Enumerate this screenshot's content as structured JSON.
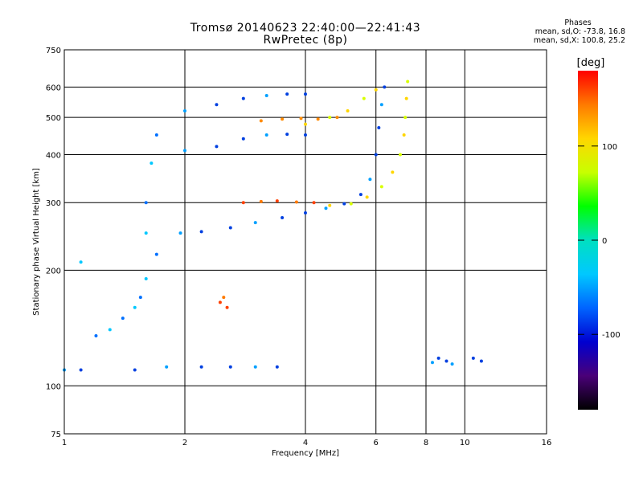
{
  "title": "Tromsø 20140623 22:40:00—22:41:43",
  "subtitle": "RwPretec (8p)",
  "stats": {
    "heading": "Phases",
    "line_o": "mean, sd,O: -73.8, 16.8",
    "line_x": "mean, sd,X: 100.8, 25.2"
  },
  "colorbar": {
    "label": "[deg]",
    "ticks": [
      "100",
      "0",
      "-100"
    ],
    "colors": [
      "#ff0000",
      "#ff7a00",
      "#ffd600",
      "#c8ff00",
      "#00ff00",
      "#00e0c0",
      "#00c8ff",
      "#0064ff",
      "#0000d0",
      "#4a0078",
      "#000000"
    ]
  },
  "chart_data": {
    "type": "scatter",
    "xlabel": "Frequency [MHz]",
    "ylabel": "Stationary phase Virtual Height [km]",
    "xscale": "log",
    "yscale": "log",
    "xlim": [
      1,
      16
    ],
    "ylim": [
      75,
      750
    ],
    "xticks": [
      1,
      2,
      4,
      6,
      8,
      10,
      16
    ],
    "yticks": [
      75,
      100,
      200,
      300,
      400,
      500,
      600,
      750
    ],
    "series": [
      {
        "points": [
          [
            1.95,
            250
          ],
          [
            2.2,
            252
          ],
          [
            2.6,
            258
          ],
          [
            3.0,
            266
          ],
          [
            3.5,
            274
          ],
          [
            4.0,
            282
          ],
          [
            4.5,
            290
          ],
          [
            5.0,
            298
          ],
          [
            5.5,
            315
          ],
          [
            5.8,
            345
          ],
          [
            6.0,
            400
          ],
          [
            6.1,
            470
          ],
          [
            6.2,
            540
          ],
          [
            6.3,
            600
          ]
        ]
      },
      {
        "points": [
          [
            2.8,
            300
          ],
          [
            3.1,
            302
          ],
          [
            3.4,
            303
          ],
          [
            3.8,
            301
          ],
          [
            4.2,
            300
          ]
        ]
      },
      {
        "points": [
          [
            4.6,
            295
          ],
          [
            5.2,
            298
          ],
          [
            5.7,
            310
          ],
          [
            6.2,
            330
          ],
          [
            6.6,
            360
          ],
          [
            6.9,
            400
          ],
          [
            7.05,
            450
          ],
          [
            7.1,
            500
          ],
          [
            7.15,
            560
          ],
          [
            7.2,
            620
          ]
        ]
      },
      {
        "points": [
          [
            2.0,
            410
          ],
          [
            2.4,
            420
          ],
          [
            2.8,
            440
          ],
          [
            3.2,
            450
          ],
          [
            3.6,
            452
          ],
          [
            4.0,
            450
          ]
        ]
      },
      {
        "points": [
          [
            2.0,
            520
          ],
          [
            2.4,
            540
          ],
          [
            2.8,
            560
          ],
          [
            3.2,
            570
          ],
          [
            3.6,
            575
          ],
          [
            4.0,
            575
          ]
        ]
      },
      {
        "points": [
          [
            3.1,
            490
          ],
          [
            3.5,
            495
          ],
          [
            3.9,
            497
          ],
          [
            4.3,
            495
          ],
          [
            4.8,
            500
          ]
        ]
      },
      {
        "points": [
          [
            4.0,
            480
          ],
          [
            4.6,
            500
          ],
          [
            5.1,
            520
          ],
          [
            5.6,
            560
          ],
          [
            6.0,
            590
          ]
        ]
      },
      {
        "points": [
          [
            1.6,
            300
          ],
          [
            1.65,
            380
          ],
          [
            1.7,
            450
          ],
          [
            1.6,
            250
          ],
          [
            1.7,
            220
          ],
          [
            1.6,
            190
          ],
          [
            1.55,
            170
          ],
          [
            1.5,
            160
          ],
          [
            1.4,
            150
          ],
          [
            1.3,
            140
          ],
          [
            1.2,
            135
          ],
          [
            1.1,
            210
          ]
        ]
      },
      {
        "points": [
          [
            1.0,
            110
          ],
          [
            1.1,
            110
          ],
          [
            1.5,
            110
          ],
          [
            1.8,
            112
          ],
          [
            2.2,
            112
          ],
          [
            2.6,
            112
          ],
          [
            3.0,
            112
          ],
          [
            3.4,
            112
          ]
        ]
      },
      {
        "points": [
          [
            2.45,
            165
          ],
          [
            2.5,
            170
          ],
          [
            2.55,
            160
          ]
        ]
      },
      {
        "points": [
          [
            8.3,
            115
          ],
          [
            8.6,
            118
          ],
          [
            9.0,
            116
          ],
          [
            9.3,
            114
          ],
          [
            10.5,
            118
          ],
          [
            11.0,
            116
          ]
        ]
      }
    ]
  }
}
